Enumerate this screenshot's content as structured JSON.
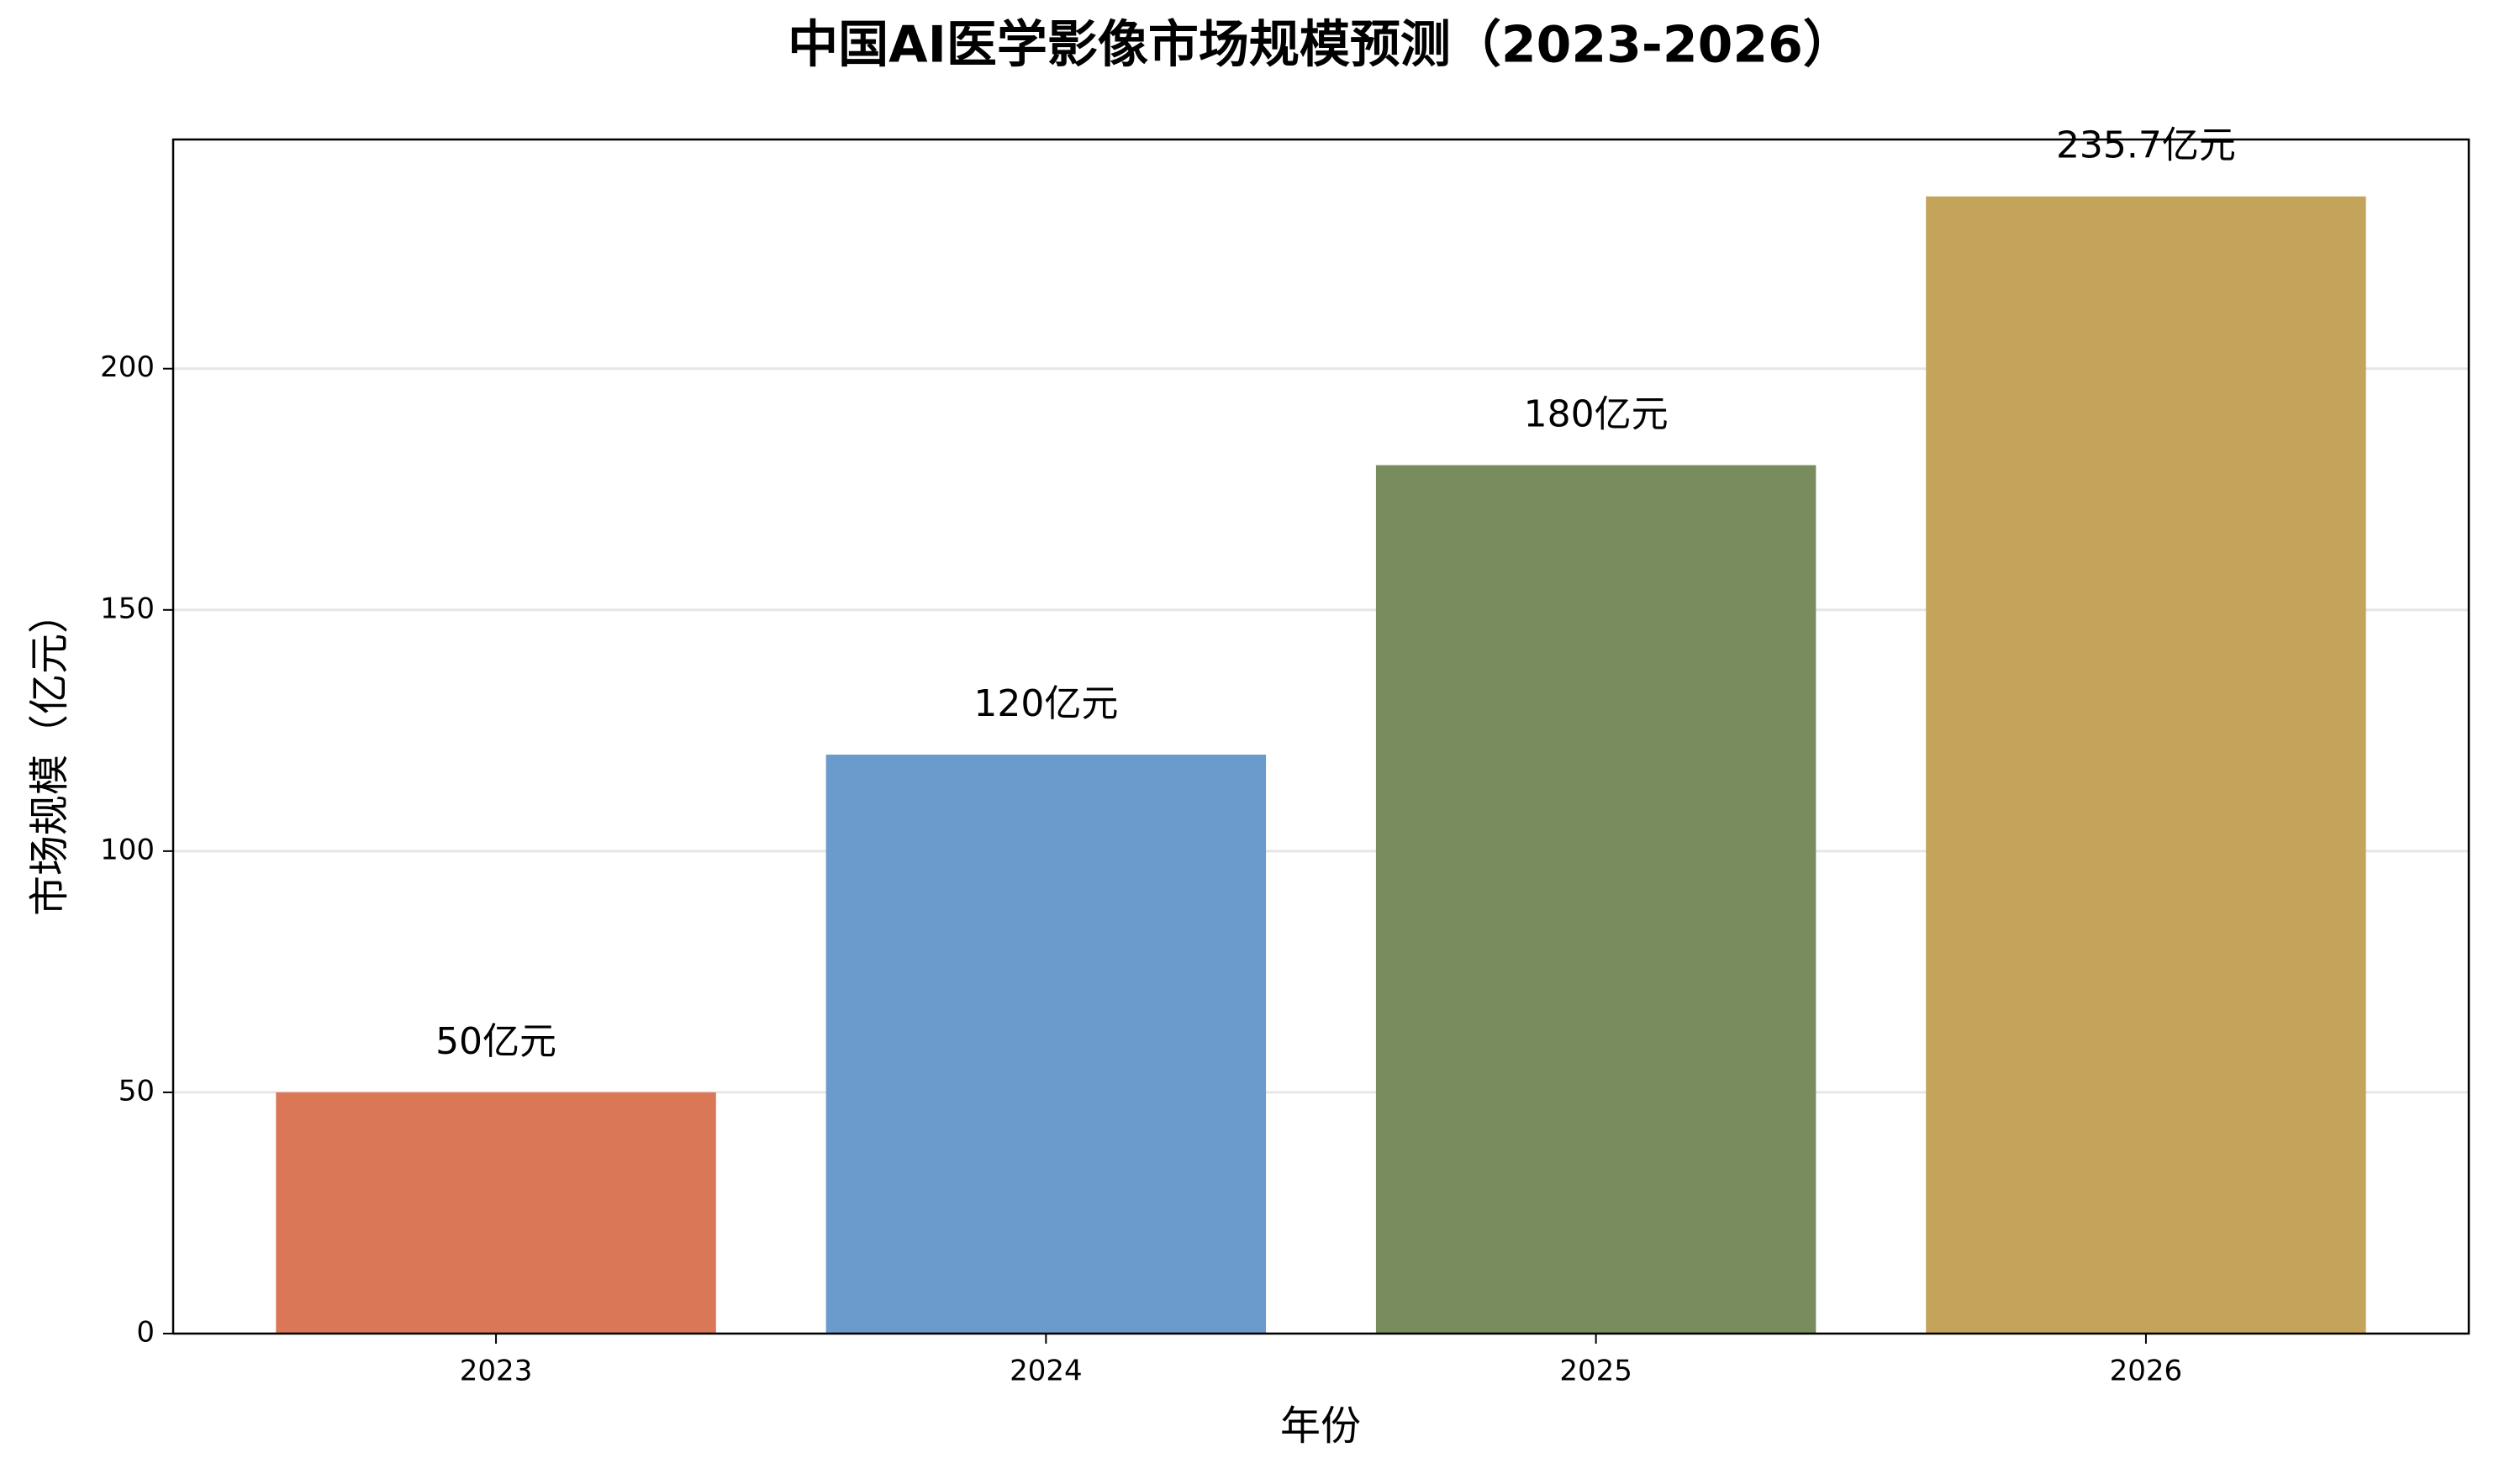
{
  "chart_data": {
    "type": "bar",
    "title": "中国AI医学影像市场规模预测（2023-2026）",
    "xlabel": "年份",
    "ylabel": "市场规模（亿元）",
    "categories": [
      "2023",
      "2024",
      "2025",
      "2026"
    ],
    "values": [
      50,
      120,
      180,
      235.7
    ],
    "value_labels": [
      "50亿元",
      "120亿元",
      "180亿元",
      "235.7亿元"
    ],
    "colors": [
      "#d97757",
      "#6b9bcc",
      "#788c5d",
      "#c4a35a"
    ],
    "ylim": [
      0,
      247.5
    ],
    "yticks": [
      0,
      50,
      100,
      150,
      200
    ],
    "grid": true
  }
}
